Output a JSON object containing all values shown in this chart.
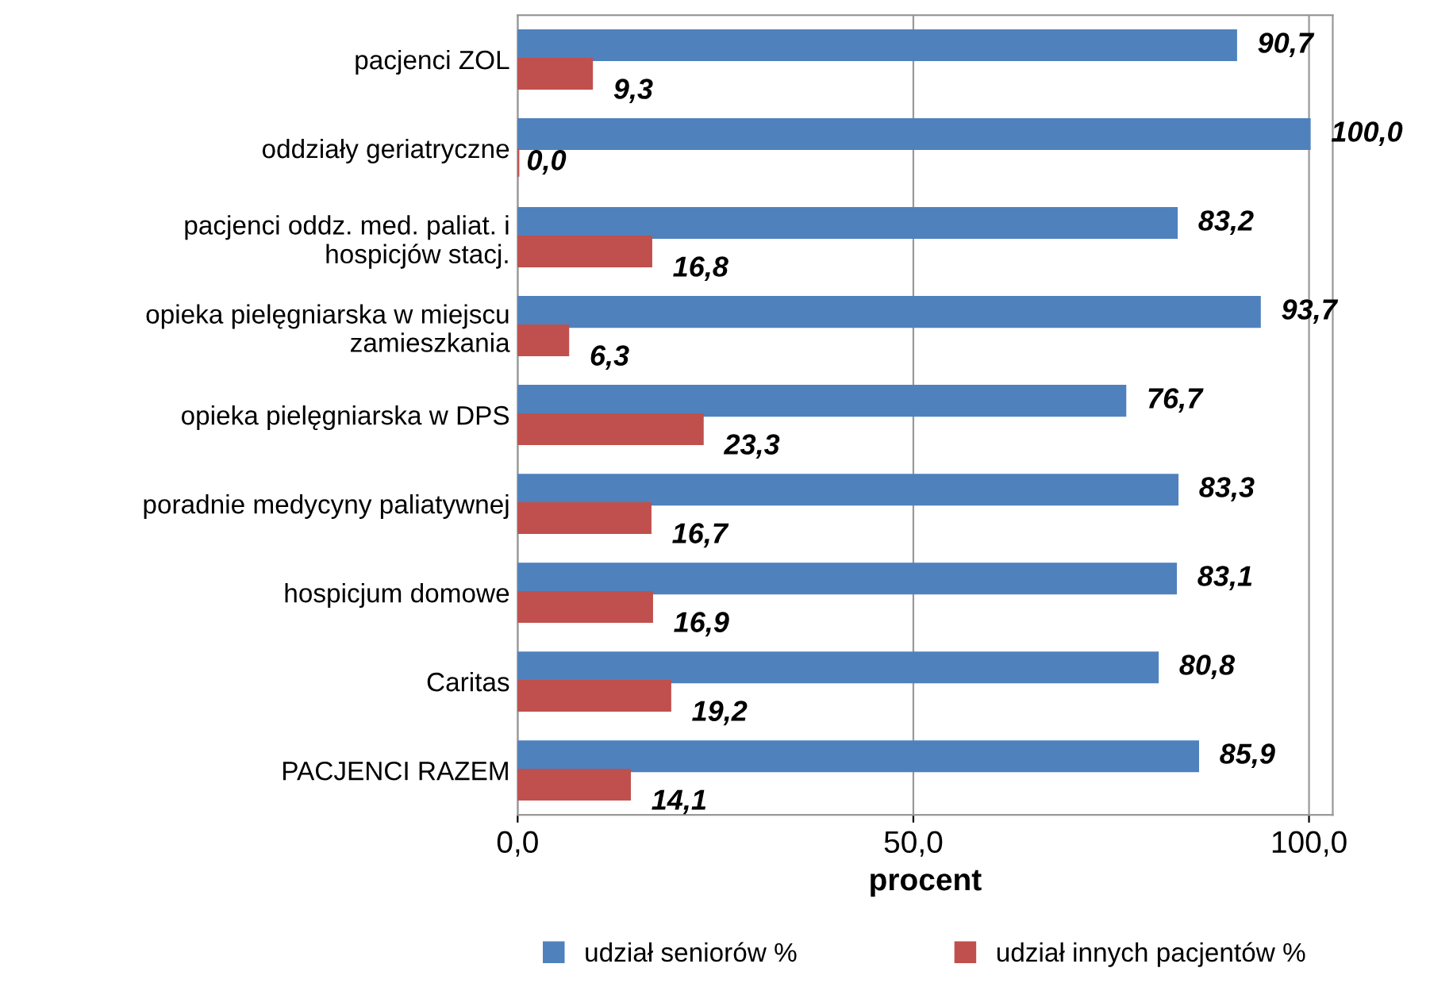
{
  "chart_data": {
    "type": "bar",
    "orientation": "horizontal",
    "xlabel": "procent",
    "categories": [
      "pacjenci ZOL",
      "oddziały geriatryczne",
      "pacjenci oddz. med. paliat. i\nhospicjów stacj.",
      "opieka pielęgniarska w miejscu\nzamieszkania",
      "opieka pielęgniarska w DPS",
      "poradnie medycyny paliatywnej",
      "hospicjum domowe",
      "Caritas",
      "PACJENCI RAZEM"
    ],
    "series": [
      {
        "name": "udział seniorów %",
        "color": "#4f81bd",
        "values": [
          90.7,
          100.0,
          83.2,
          93.7,
          76.7,
          83.3,
          83.1,
          80.8,
          85.9
        ],
        "value_labels": [
          "90,7",
          "100,0",
          "83,2",
          "93,7",
          "76,7",
          "83,3",
          "83,1",
          "80,8",
          "85,9"
        ]
      },
      {
        "name": "udział innych pacjentów %",
        "color": "#c0504d",
        "values": [
          9.3,
          0.0,
          16.8,
          6.3,
          23.3,
          16.7,
          16.9,
          19.2,
          14.1
        ],
        "value_labels": [
          "9,3",
          "0,0",
          "16,8",
          "6,3",
          "23,3",
          "16,7",
          "16,9",
          "19,2",
          "14,1"
        ]
      }
    ],
    "xlim": [
      0,
      103
    ],
    "xticks": [
      {
        "value": 0,
        "label": "0,0"
      },
      {
        "value": 50,
        "label": "50,0"
      },
      {
        "value": 100,
        "label": "100,0"
      }
    ],
    "grid": "x",
    "legend": "bottom"
  }
}
